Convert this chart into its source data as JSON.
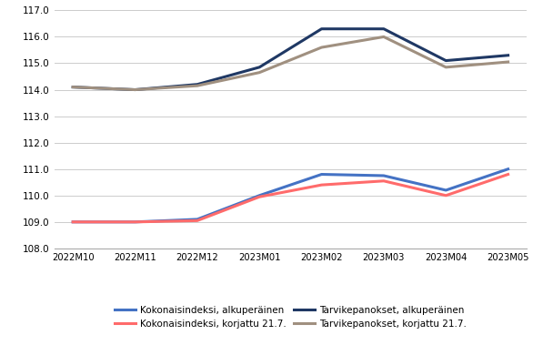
{
  "x_labels": [
    "2022M10",
    "2022M11",
    "2022M12",
    "2023M01",
    "2023M02",
    "2023M03",
    "2023M04",
    "2023M05"
  ],
  "series": {
    "kokonais_alkuperainen": [
      109.0,
      109.0,
      109.1,
      110.0,
      110.8,
      110.75,
      110.2,
      111.0
    ],
    "kokonais_korjattu": [
      109.0,
      109.0,
      109.05,
      109.95,
      110.4,
      110.55,
      110.0,
      110.8
    ],
    "tarvike_alkuperainen": [
      114.1,
      114.0,
      114.2,
      114.85,
      116.3,
      116.3,
      115.1,
      115.3
    ],
    "tarvike_korjattu": [
      114.1,
      114.0,
      114.15,
      114.65,
      115.6,
      116.0,
      114.85,
      115.05
    ]
  },
  "colors": {
    "kokonais_alkuperainen": "#4472C4",
    "kokonais_korjattu": "#FF6B6B",
    "tarvike_alkuperainen": "#1F3864",
    "tarvike_korjattu": "#A09080"
  },
  "legend_labels": {
    "kokonais_alkuperainen": "Kokonaisindeksi, alkuperäinen",
    "kokonais_korjattu": "Kokonaisindeksi, korjattu 21.7.",
    "tarvike_alkuperainen": "Tarvikepanokset, alkuperäinen",
    "tarvike_korjattu": "Tarvikepanokset, korjattu 21.7."
  },
  "ylim": [
    108.0,
    117.0
  ],
  "yticks": [
    108.0,
    109.0,
    110.0,
    111.0,
    112.0,
    113.0,
    114.0,
    115.0,
    116.0,
    117.0
  ],
  "line_width": 2.2,
  "background_color": "#ffffff",
  "grid_color": "#cccccc"
}
